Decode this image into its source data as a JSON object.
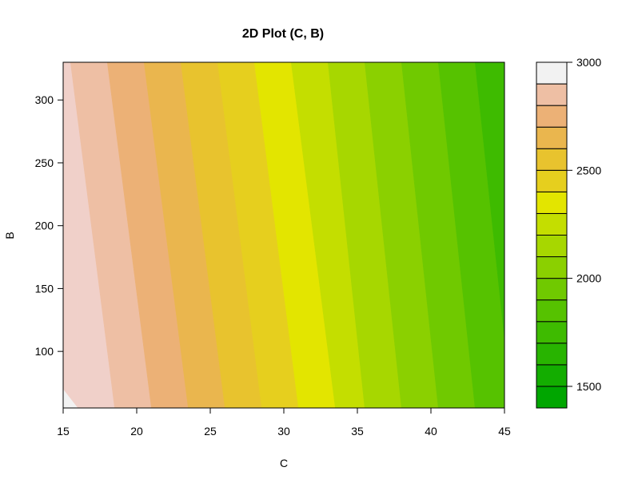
{
  "chart_data": {
    "type": "contour",
    "title": "2D Plot (C, B)",
    "xlabel": "C",
    "ylabel": "B",
    "xlim": [
      15,
      45
    ],
    "ylim": [
      55,
      330
    ],
    "x_ticks": [
      15,
      20,
      25,
      30,
      35,
      40,
      45
    ],
    "y_ticks": [
      100,
      150,
      200,
      250,
      300
    ],
    "colorbar": {
      "range": [
        1400,
        3000
      ],
      "tick_values": [
        1500,
        2000,
        2500,
        3000
      ],
      "levels": [
        1400,
        1500,
        1600,
        1700,
        1800,
        1900,
        2000,
        2100,
        2200,
        2300,
        2400,
        2500,
        2600,
        2700,
        2800,
        2900,
        3000
      ],
      "colors": [
        "#00A600",
        "#13AD00",
        "#28B400",
        "#3EBB00",
        "#56C200",
        "#70C900",
        "#8BD000",
        "#A7D700",
        "#C4DE00",
        "#E3E500",
        "#E6CF1E",
        "#E8C32E",
        "#EAB64E",
        "#ECB176",
        "#EEBFA4",
        "#F0D0C9",
        "#F2F2F2"
      ]
    },
    "contour_boundaries": [
      {
        "level": 2900,
        "top_C": 16.0,
        "bottom_C": 16.0
      },
      {
        "level": 2800,
        "top_C": 15.5,
        "bottom_C": 18.5
      },
      {
        "level": 2700,
        "top_C": 18.0,
        "bottom_C": 21.0
      },
      {
        "level": 2600,
        "top_C": 20.5,
        "bottom_C": 23.5
      },
      {
        "level": 2500,
        "top_C": 23.0,
        "bottom_C": 26.0
      },
      {
        "level": 2400,
        "top_C": 25.5,
        "bottom_C": 28.5
      },
      {
        "level": 2300,
        "top_C": 28.0,
        "bottom_C": 31.0
      },
      {
        "level": 2200,
        "top_C": 30.5,
        "bottom_C": 33.5
      },
      {
        "level": 2100,
        "top_C": 33.0,
        "bottom_C": 35.5
      },
      {
        "level": 2000,
        "top_C": 35.5,
        "bottom_C": 38.0
      },
      {
        "level": 1900,
        "top_C": 38.0,
        "bottom_C": 40.5
      },
      {
        "level": 1800,
        "top_C": 40.5,
        "bottom_C": 43.0
      },
      {
        "level": 1700,
        "top_C": 43.0,
        "bottom_C": 45.5
      }
    ],
    "grid": false,
    "legend": "right"
  }
}
